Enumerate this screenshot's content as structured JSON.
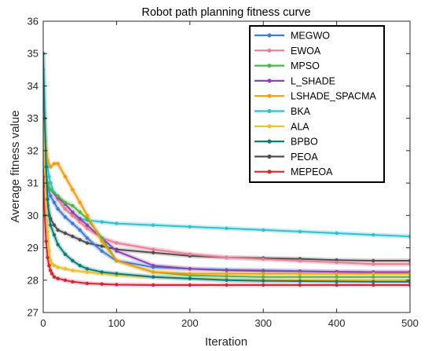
{
  "chart_data": {
    "type": "line",
    "title": "Robot path planning fitness curve",
    "xlabel": "Iteration",
    "ylabel": "Average fitness value",
    "xlim": [
      0,
      500
    ],
    "ylim": [
      27,
      36
    ],
    "xticks": [
      0,
      100,
      200,
      300,
      400,
      500
    ],
    "yticks": [
      27,
      28,
      29,
      30,
      31,
      32,
      33,
      34,
      35,
      36
    ],
    "grid": false,
    "legend_position": "top-right",
    "series": [
      {
        "name": "MEGWO",
        "color": "#3c7fd0",
        "band": "#b7c6f2",
        "x": [
          0,
          3,
          6,
          10,
          15,
          20,
          30,
          40,
          50,
          60,
          80,
          100,
          150,
          200,
          250,
          300,
          350,
          400,
          450,
          500
        ],
        "y": [
          31.6,
          31.2,
          30.9,
          30.6,
          30.4,
          30.2,
          29.95,
          29.75,
          29.55,
          29.3,
          28.9,
          28.6,
          28.4,
          28.35,
          28.32,
          28.3,
          28.28,
          28.26,
          28.25,
          28.25
        ]
      },
      {
        "name": "EWOA",
        "color": "#e87f93",
        "band": "#f3c2cc",
        "x": [
          0,
          3,
          6,
          10,
          20,
          30,
          40,
          50,
          60,
          80,
          100,
          150,
          200,
          250,
          300,
          350,
          400,
          450,
          500
        ],
        "y": [
          31.4,
          31.2,
          31.0,
          30.8,
          30.5,
          30.2,
          30.0,
          29.8,
          29.6,
          29.3,
          29.15,
          28.95,
          28.8,
          28.7,
          28.65,
          28.6,
          28.55,
          28.5,
          28.5
        ]
      },
      {
        "name": "MPSO",
        "color": "#4db848",
        "band": "#b9e3b3",
        "x": [
          0,
          3,
          6,
          10,
          20,
          30,
          40,
          50,
          60,
          80,
          100,
          150,
          200,
          250,
          300,
          350,
          400,
          450,
          500
        ],
        "y": [
          31.9,
          31.4,
          31.0,
          30.8,
          30.6,
          30.4,
          30.3,
          30.1,
          29.9,
          29.3,
          28.6,
          28.25,
          28.15,
          28.12,
          28.1,
          28.1,
          28.1,
          28.1,
          28.1
        ]
      },
      {
        "name": "L_SHADE",
        "color": "#8e44ad",
        "band": "#d7bfe6",
        "x": [
          0,
          3,
          6,
          10,
          20,
          30,
          40,
          50,
          60,
          80,
          100,
          150,
          200,
          250,
          300,
          350,
          400,
          450,
          500
        ],
        "y": [
          31.5,
          31.2,
          31.0,
          30.8,
          30.55,
          30.35,
          30.1,
          29.9,
          29.7,
          29.3,
          28.9,
          28.45,
          28.35,
          28.3,
          28.28,
          28.27,
          28.26,
          28.25,
          28.25
        ]
      },
      {
        "name": "LSHADE_SPACMA",
        "color": "#f39c12",
        "band": "#f8d9a4",
        "x": [
          0,
          3,
          6,
          10,
          15,
          20,
          30,
          40,
          50,
          60,
          80,
          100,
          150,
          200,
          250,
          300,
          350,
          400,
          450,
          500
        ],
        "y": [
          33.2,
          32.3,
          31.7,
          31.5,
          31.6,
          31.6,
          31.2,
          30.8,
          30.4,
          30.0,
          29.2,
          28.6,
          28.25,
          28.2,
          28.2,
          28.2,
          28.2,
          28.2,
          28.2,
          28.2
        ]
      },
      {
        "name": "BKA",
        "color": "#2ec1cf",
        "band": "#b6eaf0",
        "x": [
          0,
          2,
          4,
          6,
          8,
          10,
          15,
          20,
          30,
          40,
          50,
          60,
          80,
          100,
          150,
          200,
          250,
          300,
          350,
          400,
          450,
          500
        ],
        "y": [
          34.5,
          33.0,
          32.0,
          31.5,
          31.2,
          31.0,
          30.7,
          30.5,
          30.2,
          30.0,
          29.9,
          29.85,
          29.8,
          29.75,
          29.7,
          29.65,
          29.6,
          29.55,
          29.5,
          29.45,
          29.4,
          29.35
        ]
      },
      {
        "name": "ALA",
        "color": "#e8c02e",
        "band": "#f2e3a6",
        "x": [
          0,
          2,
          4,
          6,
          8,
          10,
          12,
          15,
          20,
          30,
          40,
          60,
          80,
          100,
          150,
          200,
          250,
          300,
          350,
          400,
          450,
          500
        ],
        "y": [
          32.5,
          31.5,
          30.5,
          29.5,
          28.9,
          28.6,
          28.5,
          28.45,
          28.4,
          28.35,
          28.3,
          28.25,
          28.2,
          28.15,
          28.1,
          28.05,
          28.02,
          28.0,
          28.0,
          28.0,
          28.0,
          28.0
        ]
      },
      {
        "name": "BPBO",
        "color": "#0f7a7a",
        "band": "#a6d4d4",
        "x": [
          0,
          2,
          4,
          6,
          8,
          10,
          15,
          20,
          30,
          40,
          50,
          60,
          80,
          100,
          150,
          200,
          250,
          300,
          350,
          400,
          450,
          500
        ],
        "y": [
          35.0,
          33.0,
          31.5,
          30.5,
          30.0,
          29.7,
          29.4,
          29.1,
          28.8,
          28.6,
          28.45,
          28.35,
          28.25,
          28.2,
          28.1,
          28.05,
          28.0,
          27.98,
          27.97,
          27.96,
          27.95,
          27.95
        ]
      },
      {
        "name": "PEOA",
        "color": "#4f4f4f",
        "band": "#cfcfcf",
        "x": [
          0,
          3,
          6,
          10,
          15,
          20,
          30,
          40,
          50,
          60,
          80,
          100,
          150,
          200,
          250,
          300,
          350,
          400,
          450,
          500
        ],
        "y": [
          31.8,
          30.9,
          30.3,
          29.9,
          29.7,
          29.55,
          29.45,
          29.35,
          29.25,
          29.15,
          29.05,
          28.95,
          28.85,
          28.75,
          28.7,
          28.68,
          28.66,
          28.62,
          28.6,
          28.6
        ]
      },
      {
        "name": "MEPEOA",
        "color": "#d62728",
        "band": "#f5bfd9",
        "x": [
          0,
          2,
          4,
          6,
          8,
          10,
          12,
          15,
          20,
          30,
          40,
          60,
          80,
          100,
          150,
          200,
          250,
          300,
          350,
          400,
          450,
          500
        ],
        "y": [
          31.2,
          30.0,
          29.2,
          28.7,
          28.45,
          28.3,
          28.2,
          28.1,
          28.05,
          28.0,
          27.95,
          27.9,
          27.88,
          27.86,
          27.85,
          27.85,
          27.85,
          27.85,
          27.85,
          27.85,
          27.85,
          27.85
        ]
      }
    ]
  }
}
